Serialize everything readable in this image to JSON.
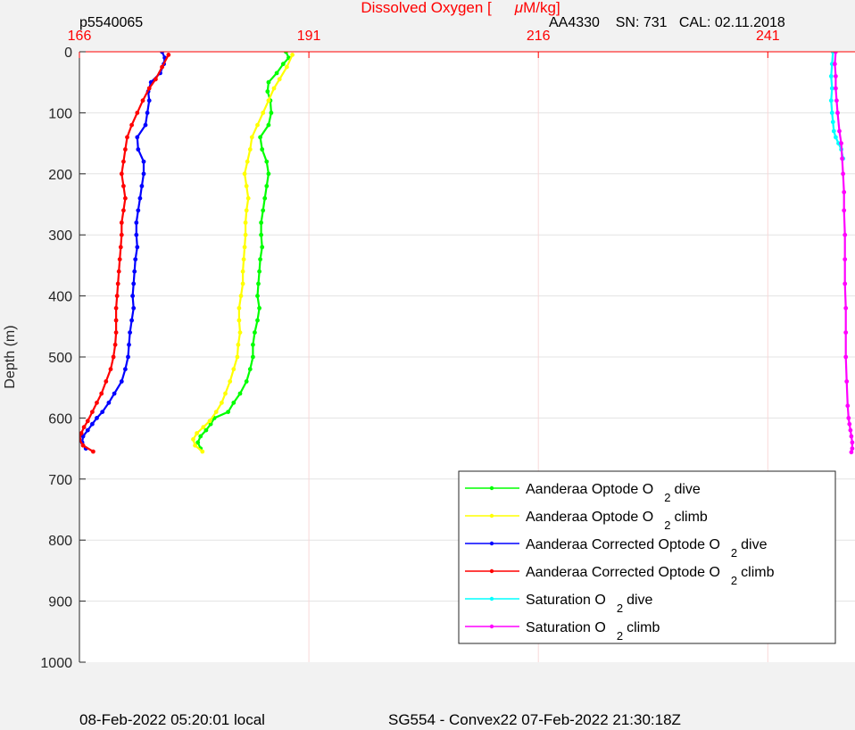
{
  "header": {
    "left": "p5540065",
    "center_prefix": "Dissolved Oxygen [",
    "center_mu": "μ",
    "center_suffix": "M/kg]",
    "right": "AA4330    SN: 731   CAL: 02.11.2018"
  },
  "footer": {
    "left": "08-Feb-2022 05:20:01 local",
    "center": "SG554 - Convex22 07-Feb-2022 21:30:18Z"
  },
  "legend": [
    {
      "name": "Aanderaa Optode O",
      "sub": "2",
      "suffix": "dive",
      "color": "#00ff00"
    },
    {
      "name": "Aanderaa Optode O",
      "sub": "2",
      "suffix": "climb",
      "color": "#ffff00"
    },
    {
      "name": "Aanderaa Corrected Optode O",
      "sub": "2",
      "suffix": "dive",
      "color": "#0000ff"
    },
    {
      "name": "Aanderaa Corrected Optode O",
      "sub": "2",
      "suffix": "climb",
      "color": "#ff0000"
    },
    {
      "name": "Saturation O",
      "sub": "2",
      "suffix": "dive",
      "color": "#00ffff"
    },
    {
      "name": "Saturation O",
      "sub": "2",
      "suffix": "climb",
      "color": "#ff00ff"
    }
  ],
  "chart_data": {
    "type": "line",
    "title": "Dissolved Oxygen [μM/kg]",
    "ylabel": "Depth (m)",
    "xlabel": "",
    "xlim": [
      166,
      250.5
    ],
    "ylim": [
      0,
      1000
    ],
    "y_inverted": true,
    "x_axis_position": "top",
    "x_ticks": [
      166,
      191,
      216,
      241
    ],
    "y_ticks": [
      0,
      100,
      200,
      300,
      400,
      500,
      600,
      700,
      800,
      900,
      1000
    ],
    "grid": true,
    "legend_placement": "bottom-right",
    "series": [
      {
        "key": "optode_dive",
        "color": "#00ff00",
        "points": [
          [
            188.5,
            0
          ],
          [
            188.8,
            10
          ],
          [
            188.2,
            20
          ],
          [
            187.5,
            35
          ],
          [
            186.6,
            50
          ],
          [
            186.5,
            65
          ],
          [
            186.8,
            80
          ],
          [
            186.9,
            100
          ],
          [
            186.6,
            120
          ],
          [
            185.7,
            140
          ],
          [
            185.9,
            160
          ],
          [
            186.4,
            180
          ],
          [
            186.6,
            200
          ],
          [
            186.4,
            220
          ],
          [
            186.2,
            240
          ],
          [
            186.0,
            260
          ],
          [
            185.8,
            280
          ],
          [
            185.8,
            300
          ],
          [
            185.9,
            320
          ],
          [
            185.7,
            340
          ],
          [
            185.6,
            360
          ],
          [
            185.5,
            380
          ],
          [
            185.4,
            400
          ],
          [
            185.6,
            420
          ],
          [
            185.4,
            440
          ],
          [
            185.1,
            460
          ],
          [
            184.9,
            480
          ],
          [
            184.9,
            500
          ],
          [
            184.6,
            520
          ],
          [
            184.2,
            540
          ],
          [
            183.5,
            560
          ],
          [
            182.8,
            575
          ],
          [
            182.2,
            590
          ],
          [
            180.7,
            600
          ],
          [
            180.3,
            610
          ],
          [
            179.8,
            620
          ],
          [
            179.2,
            630
          ],
          [
            178.9,
            640
          ],
          [
            179.2,
            650
          ]
        ]
      },
      {
        "key": "optode_climb",
        "color": "#ffff00",
        "points": [
          [
            189.2,
            5
          ],
          [
            188.6,
            25
          ],
          [
            187.8,
            45
          ],
          [
            187.2,
            60
          ],
          [
            186.6,
            80
          ],
          [
            186.0,
            100
          ],
          [
            185.4,
            120
          ],
          [
            184.8,
            140
          ],
          [
            184.6,
            160
          ],
          [
            184.3,
            180
          ],
          [
            184.0,
            200
          ],
          [
            184.2,
            220
          ],
          [
            184.4,
            240
          ],
          [
            184.2,
            260
          ],
          [
            184.1,
            280
          ],
          [
            184.1,
            300
          ],
          [
            184.0,
            320
          ],
          [
            183.9,
            340
          ],
          [
            183.8,
            360
          ],
          [
            183.8,
            380
          ],
          [
            183.6,
            400
          ],
          [
            183.4,
            420
          ],
          [
            183.4,
            440
          ],
          [
            183.5,
            460
          ],
          [
            183.3,
            480
          ],
          [
            183.2,
            500
          ],
          [
            182.8,
            520
          ],
          [
            182.4,
            540
          ],
          [
            181.9,
            560
          ],
          [
            181.5,
            575
          ],
          [
            180.9,
            590
          ],
          [
            180.2,
            605
          ],
          [
            179.5,
            615
          ],
          [
            178.8,
            625
          ],
          [
            178.4,
            635
          ],
          [
            178.6,
            645
          ],
          [
            179.4,
            655
          ]
        ]
      },
      {
        "key": "corrected_dive",
        "color": "#0000ff",
        "points": [
          [
            175.0,
            0
          ],
          [
            175.3,
            10
          ],
          [
            175.2,
            20
          ],
          [
            174.8,
            35
          ],
          [
            173.8,
            50
          ],
          [
            173.5,
            65
          ],
          [
            173.6,
            80
          ],
          [
            173.4,
            100
          ],
          [
            173.2,
            120
          ],
          [
            172.3,
            140
          ],
          [
            172.4,
            160
          ],
          [
            173.0,
            180
          ],
          [
            173.0,
            200
          ],
          [
            172.8,
            220
          ],
          [
            172.6,
            240
          ],
          [
            172.4,
            260
          ],
          [
            172.2,
            280
          ],
          [
            172.2,
            300
          ],
          [
            172.3,
            320
          ],
          [
            172.1,
            340
          ],
          [
            172.0,
            360
          ],
          [
            171.9,
            380
          ],
          [
            171.8,
            400
          ],
          [
            171.9,
            420
          ],
          [
            171.7,
            440
          ],
          [
            171.5,
            460
          ],
          [
            171.4,
            480
          ],
          [
            171.3,
            500
          ],
          [
            171.0,
            520
          ],
          [
            170.6,
            540
          ],
          [
            169.8,
            560
          ],
          [
            169.2,
            575
          ],
          [
            168.5,
            590
          ],
          [
            167.9,
            600
          ],
          [
            167.4,
            610
          ],
          [
            166.9,
            620
          ],
          [
            166.4,
            630
          ],
          [
            166.3,
            640
          ],
          [
            166.7,
            650
          ]
        ]
      },
      {
        "key": "corrected_climb",
        "color": "#ff0000",
        "points": [
          [
            175.7,
            5
          ],
          [
            175.0,
            25
          ],
          [
            174.3,
            45
          ],
          [
            173.6,
            60
          ],
          [
            172.9,
            80
          ],
          [
            172.3,
            100
          ],
          [
            171.7,
            120
          ],
          [
            171.2,
            140
          ],
          [
            171.0,
            160
          ],
          [
            170.8,
            180
          ],
          [
            170.6,
            200
          ],
          [
            170.8,
            220
          ],
          [
            171.0,
            240
          ],
          [
            170.8,
            260
          ],
          [
            170.6,
            280
          ],
          [
            170.6,
            300
          ],
          [
            170.5,
            320
          ],
          [
            170.4,
            340
          ],
          [
            170.3,
            360
          ],
          [
            170.2,
            380
          ],
          [
            170.1,
            400
          ],
          [
            170.0,
            420
          ],
          [
            170.0,
            440
          ],
          [
            170.0,
            460
          ],
          [
            169.9,
            480
          ],
          [
            169.7,
            500
          ],
          [
            169.4,
            520
          ],
          [
            168.9,
            540
          ],
          [
            168.4,
            560
          ],
          [
            167.9,
            575
          ],
          [
            167.4,
            590
          ],
          [
            166.9,
            605
          ],
          [
            166.5,
            615
          ],
          [
            166.2,
            625
          ],
          [
            166.0,
            635
          ],
          [
            166.4,
            645
          ],
          [
            167.5,
            655
          ]
        ]
      },
      {
        "key": "saturation_dive",
        "color": "#00ffff",
        "points": [
          [
            248.1,
            0
          ],
          [
            248.0,
            20
          ],
          [
            247.9,
            40
          ],
          [
            248.0,
            60
          ],
          [
            247.9,
            80
          ],
          [
            248.0,
            100
          ],
          [
            248.1,
            115
          ],
          [
            248.2,
            130
          ],
          [
            248.4,
            140
          ],
          [
            248.7,
            150
          ],
          [
            249.0,
            160
          ],
          [
            249.2,
            175
          ]
        ]
      },
      {
        "key": "saturation_climb",
        "color": "#ff00ff",
        "points": [
          [
            248.4,
            0
          ],
          [
            248.3,
            20
          ],
          [
            248.4,
            40
          ],
          [
            248.4,
            60
          ],
          [
            248.5,
            80
          ],
          [
            248.6,
            100
          ],
          [
            248.8,
            130
          ],
          [
            249.0,
            150
          ],
          [
            249.1,
            175
          ],
          [
            249.2,
            200
          ],
          [
            249.3,
            230
          ],
          [
            249.3,
            260
          ],
          [
            249.4,
            300
          ],
          [
            249.4,
            340
          ],
          [
            249.4,
            380
          ],
          [
            249.5,
            420
          ],
          [
            249.5,
            460
          ],
          [
            249.5,
            500
          ],
          [
            249.6,
            540
          ],
          [
            249.7,
            580
          ],
          [
            249.8,
            600
          ],
          [
            249.9,
            610
          ],
          [
            250.0,
            620
          ],
          [
            250.1,
            630
          ],
          [
            250.2,
            640
          ],
          [
            250.2,
            650
          ],
          [
            250.1,
            656
          ]
        ]
      }
    ]
  }
}
